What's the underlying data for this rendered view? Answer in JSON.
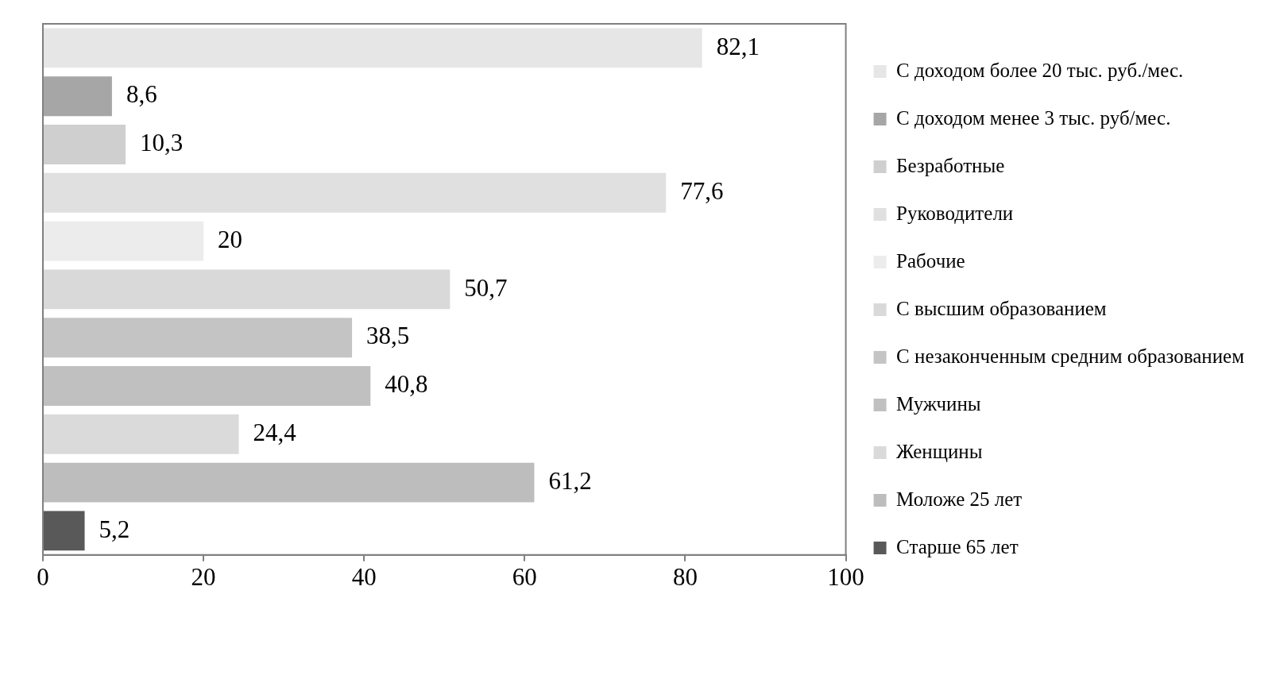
{
  "chart_data": {
    "type": "bar",
    "orientation": "horizontal",
    "stacked": true,
    "categories": [
      null,
      null,
      null,
      null,
      null,
      null,
      null,
      null,
      null,
      null,
      null
    ],
    "xlim": [
      0,
      100
    ],
    "xticks": [
      0,
      20,
      40,
      60,
      80,
      100
    ],
    "grid": false,
    "legend": "right",
    "series": [
      {
        "name": "С доходом более 20 тыс. руб./мес.",
        "color": "#e6e6e6",
        "values": [
          82.1,
          null,
          null,
          null,
          null,
          null,
          null,
          null,
          null,
          null,
          null
        ],
        "value_labels": [
          "82,1",
          null,
          null,
          null,
          null,
          null,
          null,
          null,
          null,
          null,
          null
        ]
      },
      {
        "name": "С доходом менее 3 тыс. руб/мес.",
        "color": "#a6a6a6",
        "values": [
          null,
          8.6,
          null,
          null,
          null,
          null,
          null,
          null,
          null,
          null,
          null
        ],
        "value_labels": [
          null,
          "8,6",
          null,
          null,
          null,
          null,
          null,
          null,
          null,
          null,
          null
        ]
      },
      {
        "name": "Безработные",
        "color": "#cfcfcf",
        "values": [
          null,
          null,
          10.3,
          null,
          null,
          null,
          null,
          null,
          null,
          null,
          null
        ],
        "value_labels": [
          null,
          null,
          "10,3",
          null,
          null,
          null,
          null,
          null,
          null,
          null,
          null
        ]
      },
      {
        "name": "Руководители",
        "color": "#e0e0e0",
        "values": [
          null,
          null,
          null,
          77.6,
          null,
          null,
          null,
          null,
          null,
          null,
          null
        ],
        "value_labels": [
          null,
          null,
          null,
          "77,6",
          null,
          null,
          null,
          null,
          null,
          null,
          null
        ]
      },
      {
        "name": "Рабочие",
        "color": "#ececec",
        "values": [
          null,
          null,
          null,
          null,
          20,
          null,
          null,
          null,
          null,
          null,
          null
        ],
        "value_labels": [
          null,
          null,
          null,
          null,
          "20",
          null,
          null,
          null,
          null,
          null,
          null
        ]
      },
      {
        "name": "С высшим образованием",
        "color": "#d9d9d9",
        "values": [
          null,
          null,
          null,
          null,
          null,
          50.7,
          null,
          null,
          null,
          null,
          null
        ],
        "value_labels": [
          null,
          null,
          null,
          null,
          null,
          "50,7",
          null,
          null,
          null,
          null,
          null
        ]
      },
      {
        "name": "С незаконченным средним образованием",
        "color": "#c4c4c4",
        "values": [
          null,
          null,
          null,
          null,
          null,
          null,
          38.5,
          null,
          null,
          null,
          null
        ],
        "value_labels": [
          null,
          null,
          null,
          null,
          null,
          null,
          "38,5",
          null,
          null,
          null,
          null
        ]
      },
      {
        "name": "Мужчины",
        "color": "#c0c0c0",
        "values": [
          null,
          null,
          null,
          null,
          null,
          null,
          null,
          40.8,
          null,
          null,
          null
        ],
        "value_labels": [
          null,
          null,
          null,
          null,
          null,
          null,
          null,
          "40,8",
          null,
          null,
          null
        ]
      },
      {
        "name": "Женщины",
        "color": "#dadada",
        "values": [
          null,
          null,
          null,
          null,
          null,
          null,
          null,
          null,
          24.4,
          null,
          null
        ],
        "value_labels": [
          null,
          null,
          null,
          null,
          null,
          null,
          null,
          null,
          "24,4",
          null,
          null
        ]
      },
      {
        "name": "Моложе 25 лет",
        "color": "#bdbdbd",
        "values": [
          null,
          null,
          null,
          null,
          null,
          null,
          null,
          null,
          null,
          61.2,
          null
        ],
        "value_labels": [
          null,
          null,
          null,
          null,
          null,
          null,
          null,
          null,
          null,
          "61,2",
          null
        ]
      },
      {
        "name": "Старше 65 лет",
        "color": "#595959",
        "values": [
          null,
          null,
          null,
          null,
          null,
          null,
          null,
          null,
          null,
          null,
          5.2
        ],
        "value_labels": [
          null,
          null,
          null,
          null,
          null,
          null,
          null,
          null,
          null,
          null,
          "5,2"
        ]
      }
    ]
  }
}
